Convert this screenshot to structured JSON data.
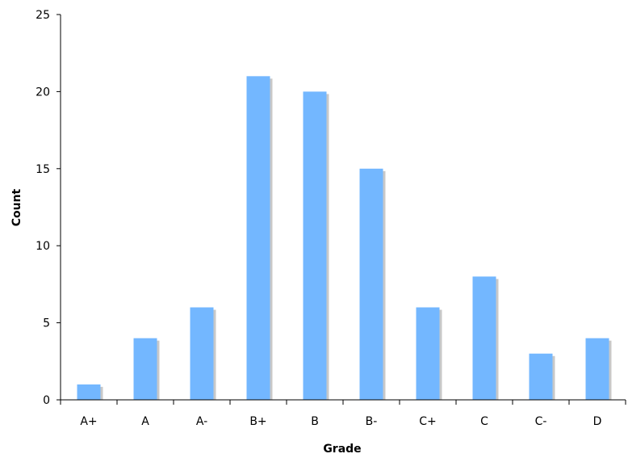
{
  "chart_data": {
    "type": "bar",
    "categories": [
      "A+",
      "A",
      "A-",
      "B+",
      "B",
      "B-",
      "C+",
      "C",
      "C-",
      "D"
    ],
    "values": [
      1,
      4,
      6,
      21,
      20,
      15,
      6,
      8,
      3,
      4
    ],
    "title": "",
    "xlabel": "Grade",
    "ylabel": "Count",
    "ylim": [
      0,
      25
    ],
    "yticks": [
      0,
      5,
      10,
      15,
      20,
      25
    ],
    "grid": false,
    "legend": "none",
    "colors": {
      "bar": "#73b7ff",
      "bar_shadow": "#c8c8c8",
      "axis": "#000000"
    }
  }
}
